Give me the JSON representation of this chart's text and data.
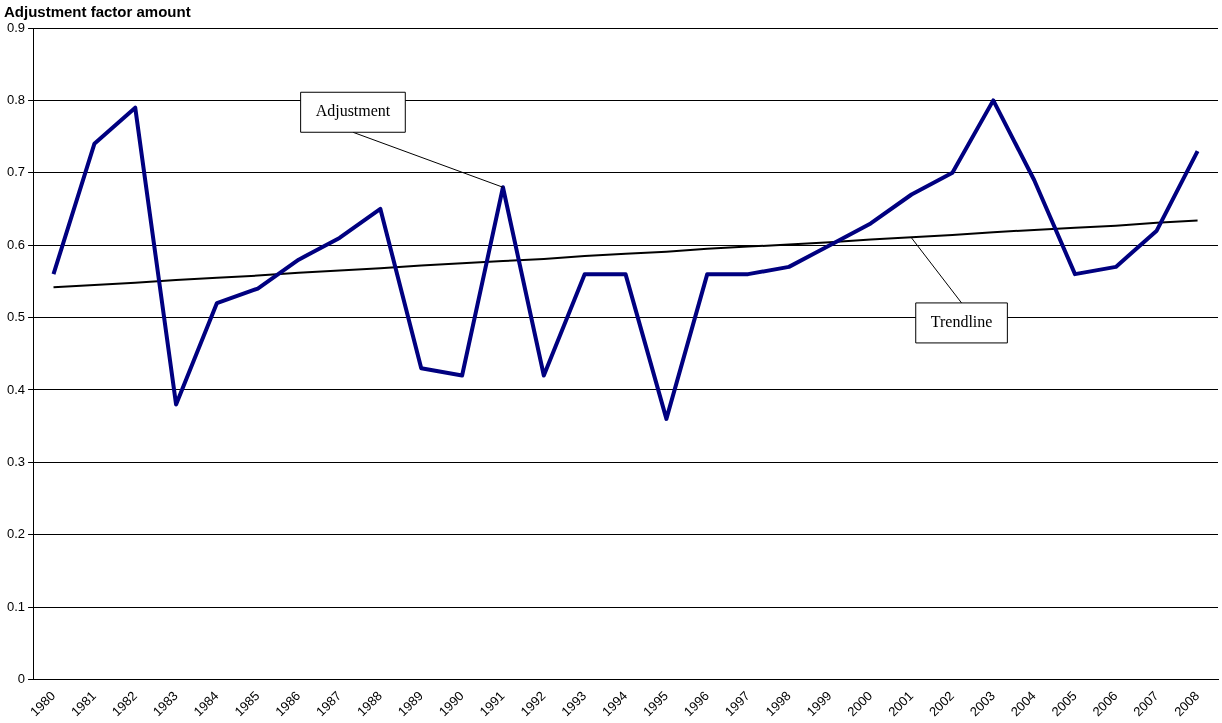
{
  "chart_data": {
    "type": "line",
    "title": "Adjustment factor amount",
    "categories": [
      "1980",
      "1981",
      "1982",
      "1983",
      "1984",
      "1985",
      "1986",
      "1987",
      "1988",
      "1989",
      "1990",
      "1991",
      "1992",
      "1993",
      "1994",
      "1995",
      "1996",
      "1997",
      "1998",
      "1999",
      "2000",
      "2001",
      "2002",
      "2003",
      "2004",
      "2005",
      "2006",
      "2007",
      "2008"
    ],
    "series": [
      {
        "color": "#000080",
        "values": [
          0.56,
          0.74,
          0.79,
          0.38,
          0.52,
          0.54,
          0.58,
          0.61,
          0.65,
          0.43,
          0.42,
          0.68,
          0.42,
          0.56,
          0.56,
          0.36,
          0.56,
          0.56,
          0.57,
          0.6,
          0.63,
          0.67,
          0.7,
          0.8,
          0.69,
          0.56,
          0.57,
          0.62,
          0.73
        ]
      },
      {
        "type": "line",
        "color": "#000000",
        "values": [
          0.542,
          0.545,
          0.548,
          0.552,
          0.555,
          0.558,
          0.562,
          0.565,
          0.568,
          0.572,
          0.575,
          0.578,
          0.581,
          0.585,
          0.588,
          0.591,
          0.595,
          0.598,
          0.601,
          0.604,
          0.608,
          0.611,
          0.614,
          0.618,
          0.621,
          0.624,
          0.627,
          0.631,
          0.634
        ]
      }
    ],
    "ylim": [
      0,
      0.9
    ],
    "yticks": [
      0,
      0.1,
      0.2,
      0.3,
      0.4,
      0.5,
      0.6,
      0.7,
      0.8,
      0.9
    ],
    "grid": "y",
    "marker": "none",
    "line_style": "solid",
    "legend": false,
    "annotations": [
      {
        "text": "Adjustment",
        "x": "1991",
        "y": 0.68
      },
      {
        "text": "Trendline",
        "x": "2001",
        "y": 0.61
      }
    ]
  }
}
